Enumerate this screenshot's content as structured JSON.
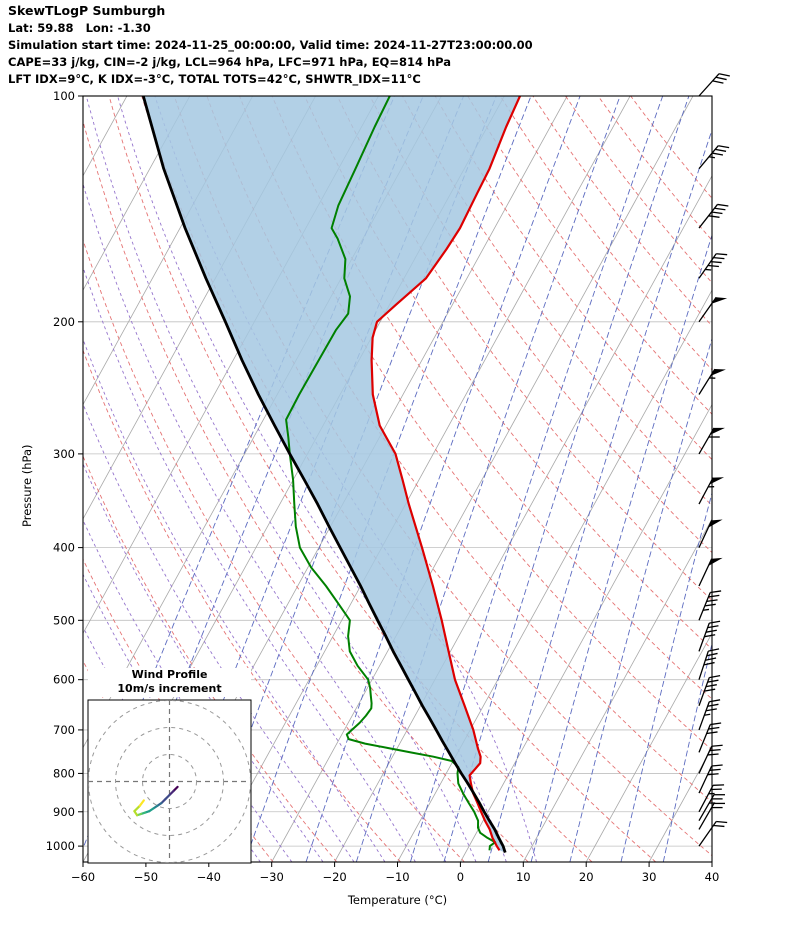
{
  "header": {
    "title": "SkewTLogP Sumburgh",
    "location": "Lat: 59.88   Lon: -1.30",
    "sim_time": "Simulation start time: 2024-11-25_00:00:00, Valid time: 2024-11-27T23:00:00.00",
    "indices1": "CAPE=33 j/kg, CIN=-2 j/kg, LCL=964 hPa, LFC=971 hPa, EQ=814 hPa",
    "indices2": "LFT IDX=9°C, K IDX=-3°C, TOTAL TOTS=42°C, SHWTR_IDX=11°C"
  },
  "chart_data": {
    "type": "line",
    "subtype": "skewt-logp",
    "xlabel": "Temperature (°C)",
    "ylabel": "Pressure (hPa)",
    "xlim": [
      -60,
      40
    ],
    "plim": [
      100,
      1050
    ],
    "skew": 0.55,
    "x_ticks": [
      -60,
      -50,
      -40,
      -30,
      -20,
      -10,
      0,
      10,
      20,
      30,
      40
    ],
    "y_ticks": [
      100,
      200,
      300,
      400,
      500,
      600,
      700,
      800,
      900,
      1000
    ],
    "series": {
      "temperature": {
        "name": "temperature",
        "color": "#dd0000",
        "width": 2.2,
        "points": [
          [
            1013,
            5.2
          ],
          [
            1000,
            4.4
          ],
          [
            975,
            3.0
          ],
          [
            950,
            1.8
          ],
          [
            925,
            0.3
          ],
          [
            900,
            -1.1
          ],
          [
            875,
            -2.5
          ],
          [
            850,
            -4.0
          ],
          [
            825,
            -5.2
          ],
          [
            805,
            -6.1
          ],
          [
            790,
            -5.8
          ],
          [
            775,
            -5.5
          ],
          [
            760,
            -6.0
          ],
          [
            740,
            -7.2
          ],
          [
            700,
            -9.5
          ],
          [
            650,
            -13.0
          ],
          [
            600,
            -16.8
          ],
          [
            550,
            -20.3
          ],
          [
            500,
            -24.1
          ],
          [
            450,
            -28.5
          ],
          [
            400,
            -33.6
          ],
          [
            350,
            -39.5
          ],
          [
            325,
            -42.6
          ],
          [
            300,
            -46.0
          ],
          [
            275,
            -51.0
          ],
          [
            250,
            -54.8
          ],
          [
            225,
            -58.0
          ],
          [
            210,
            -59.8
          ],
          [
            200,
            -60.5
          ],
          [
            190,
            -59.0
          ],
          [
            175,
            -56.5
          ],
          [
            160,
            -55.8
          ],
          [
            150,
            -55.5
          ],
          [
            135,
            -55.8
          ],
          [
            125,
            -56.0
          ],
          [
            110,
            -57.0
          ],
          [
            100,
            -57.5
          ]
        ]
      },
      "dewpoint": {
        "name": "dewpoint",
        "color": "#008000",
        "width": 2.0,
        "points": [
          [
            1013,
            3.6
          ],
          [
            1000,
            3.3
          ],
          [
            988,
            3.8
          ],
          [
            975,
            2.2
          ],
          [
            960,
            0.6
          ],
          [
            945,
            -0.2
          ],
          [
            925,
            -0.8
          ],
          [
            900,
            -2.2
          ],
          [
            875,
            -3.9
          ],
          [
            850,
            -5.6
          ],
          [
            825,
            -7.2
          ],
          [
            800,
            -8.2
          ],
          [
            785,
            -8.6
          ],
          [
            770,
            -10.2
          ],
          [
            760,
            -13.5
          ],
          [
            750,
            -17.5
          ],
          [
            740,
            -21.5
          ],
          [
            730,
            -25.5
          ],
          [
            720,
            -28.5
          ],
          [
            710,
            -29.2
          ],
          [
            700,
            -28.8
          ],
          [
            685,
            -28.2
          ],
          [
            670,
            -27.8
          ],
          [
            655,
            -27.6
          ],
          [
            645,
            -28.0
          ],
          [
            630,
            -28.8
          ],
          [
            615,
            -29.6
          ],
          [
            600,
            -30.6
          ],
          [
            575,
            -33.5
          ],
          [
            550,
            -36.0
          ],
          [
            525,
            -37.6
          ],
          [
            500,
            -38.7
          ],
          [
            475,
            -42.0
          ],
          [
            450,
            -45.5
          ],
          [
            425,
            -49.5
          ],
          [
            400,
            -53.0
          ],
          [
            375,
            -55.5
          ],
          [
            350,
            -57.7
          ],
          [
            325,
            -60.0
          ],
          [
            300,
            -62.8
          ],
          [
            285,
            -64.5
          ],
          [
            270,
            -66.4
          ],
          [
            250,
            -66.5
          ],
          [
            225,
            -66.4
          ],
          [
            205,
            -66.3
          ],
          [
            195,
            -65.8
          ],
          [
            185,
            -67.0
          ],
          [
            175,
            -69.5
          ],
          [
            165,
            -71.0
          ],
          [
            155,
            -74.0
          ],
          [
            150,
            -75.9
          ],
          [
            140,
            -76.8
          ],
          [
            125,
            -77.3
          ],
          [
            110,
            -77.9
          ],
          [
            100,
            -78.2
          ]
        ]
      },
      "parcel": {
        "name": "parcel-path",
        "color": "#000000",
        "width": 2.8,
        "points": [
          [
            1020,
            6.3
          ],
          [
            1000,
            5.4
          ],
          [
            975,
            4.0
          ],
          [
            950,
            2.6
          ],
          [
            925,
            1.0
          ],
          [
            900,
            -0.6
          ],
          [
            875,
            -2.2
          ],
          [
            850,
            -3.9
          ],
          [
            825,
            -5.7
          ],
          [
            800,
            -7.6
          ],
          [
            775,
            -9.5
          ],
          [
            750,
            -11.4
          ],
          [
            725,
            -13.4
          ],
          [
            700,
            -15.4
          ],
          [
            675,
            -17.5
          ],
          [
            650,
            -19.7
          ],
          [
            625,
            -21.9
          ],
          [
            600,
            -24.2
          ],
          [
            575,
            -26.6
          ],
          [
            550,
            -29.1
          ],
          [
            525,
            -31.6
          ],
          [
            500,
            -34.3
          ],
          [
            475,
            -37.1
          ],
          [
            450,
            -40.0
          ],
          [
            425,
            -43.2
          ],
          [
            400,
            -46.6
          ],
          [
            375,
            -50.2
          ],
          [
            350,
            -54.0
          ],
          [
            325,
            -58.2
          ],
          [
            300,
            -62.8
          ],
          [
            275,
            -67.7
          ],
          [
            250,
            -73.0
          ],
          [
            225,
            -78.6
          ],
          [
            200,
            -84.6
          ],
          [
            175,
            -91.5
          ],
          [
            150,
            -99.2
          ],
          [
            125,
            -107.8
          ],
          [
            100,
            -117.4
          ]
        ]
      }
    },
    "fill_between": {
      "a": "parcel",
      "b": "temperature",
      "color": "#a5c8e2",
      "opacity": 0.85
    },
    "background": {
      "gridline_color": "#c0c0c0",
      "isotherms": {
        "color": "#a8a8a8",
        "start": -140,
        "end": 40,
        "step": 10
      },
      "dry_adiabats": {
        "color": "#e57373",
        "theta_start": 230,
        "theta_end": 450,
        "step": 10
      },
      "moist_adiabats": {
        "color": "#9575cd",
        "thetaw": [
          -40,
          -35,
          -30,
          -25,
          -20,
          -15,
          -10,
          -5,
          0,
          5,
          10
        ]
      },
      "mixing_ratio": {
        "color": "#5c6bc0",
        "values_gkg": [
          0.01,
          0.02,
          0.05,
          0.1,
          0.2,
          0.5,
          1,
          2,
          3,
          5,
          8,
          12,
          20,
          30
        ]
      }
    },
    "wind_profile": {
      "units": "kt",
      "barb_color": "#000000",
      "levels": [
        {
          "p": 1000,
          "dir": 35,
          "spd": 18
        },
        {
          "p": 950,
          "dir": 30,
          "spd": 22
        },
        {
          "p": 925,
          "dir": 30,
          "spd": 25
        },
        {
          "p": 900,
          "dir": 28,
          "spd": 26
        },
        {
          "p": 850,
          "dir": 25,
          "spd": 28
        },
        {
          "p": 800,
          "dir": 25,
          "spd": 30
        },
        {
          "p": 750,
          "dir": 22,
          "spd": 32
        },
        {
          "p": 700,
          "dir": 20,
          "spd": 35
        },
        {
          "p": 650,
          "dir": 20,
          "spd": 38
        },
        {
          "p": 600,
          "dir": 18,
          "spd": 40
        },
        {
          "p": 550,
          "dir": 20,
          "spd": 42
        },
        {
          "p": 500,
          "dir": 22,
          "spd": 45
        },
        {
          "p": 450,
          "dir": 25,
          "spd": 48
        },
        {
          "p": 400,
          "dir": 25,
          "spd": 52
        },
        {
          "p": 350,
          "dir": 28,
          "spd": 55
        },
        {
          "p": 300,
          "dir": 30,
          "spd": 58
        },
        {
          "p": 250,
          "dir": 32,
          "spd": 55
        },
        {
          "p": 200,
          "dir": 35,
          "spd": 50
        },
        {
          "p": 175,
          "dir": 35,
          "spd": 45
        },
        {
          "p": 150,
          "dir": 38,
          "spd": 40
        },
        {
          "p": 125,
          "dir": 40,
          "spd": 34
        },
        {
          "p": 100,
          "dir": 42,
          "spd": 28
        }
      ]
    },
    "hodograph": {
      "title": "Wind Profile",
      "subtitle": "10m/s increment",
      "ring_step_ms": 10,
      "rings_ms": [
        10,
        20,
        30
      ],
      "trace_uv_ms": [
        [
          3,
          -2
        ],
        [
          1.5,
          -3.5
        ],
        [
          0,
          -5
        ],
        [
          -1.5,
          -6.5
        ],
        [
          -3,
          -8
        ],
        [
          -4.5,
          -9
        ],
        [
          -6,
          -10
        ],
        [
          -7.5,
          -11
        ],
        [
          -9,
          -11.5
        ],
        [
          -10.5,
          -12
        ],
        [
          -12,
          -12.5
        ],
        [
          -13,
          -11
        ],
        [
          -11,
          -9
        ],
        [
          -9.5,
          -7
        ]
      ],
      "palette": [
        "#440154",
        "#482878",
        "#3e4a89",
        "#31688e",
        "#26828e",
        "#1f9e89",
        "#35b779",
        "#6ece58",
        "#b5de2b",
        "#fde725"
      ]
    }
  }
}
